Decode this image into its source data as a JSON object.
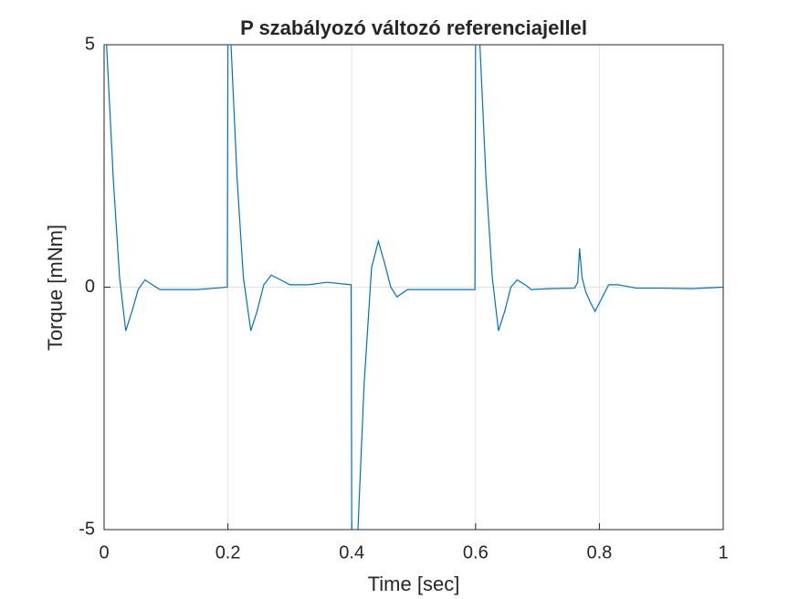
{
  "chart_data": {
    "type": "line",
    "title": "P szabályozó változó referenciajellel",
    "xlabel": "Time [sec]",
    "ylabel": "Torque [mNm]",
    "xlim": [
      0,
      1
    ],
    "ylim": [
      -5,
      5
    ],
    "xticks": [
      0,
      0.2,
      0.4,
      0.6,
      0.8,
      1
    ],
    "yticks": [
      -5,
      0,
      5
    ],
    "grid": true,
    "x": [
      0,
      0.004,
      0.015,
      0.025,
      0.035,
      0.045,
      0.055,
      0.066,
      0.078,
      0.09,
      0.12,
      0.15,
      0.18,
      0.199,
      0.2,
      0.205,
      0.215,
      0.225,
      0.237,
      0.247,
      0.258,
      0.27,
      0.285,
      0.3,
      0.33,
      0.36,
      0.399,
      0.4,
      0.41,
      0.42,
      0.432,
      0.443,
      0.453,
      0.463,
      0.473,
      0.49,
      0.52,
      0.56,
      0.599,
      0.6,
      0.607,
      0.617,
      0.627,
      0.637,
      0.647,
      0.657,
      0.667,
      0.68,
      0.69,
      0.72,
      0.76,
      0.765,
      0.768,
      0.772,
      0.778,
      0.785,
      0.793,
      0.803,
      0.815,
      0.83,
      0.86,
      0.9,
      0.95,
      1.0
    ],
    "series": [
      {
        "color": "#0072bd",
        "values": [
          5,
          5,
          2.2,
          0.2,
          -0.9,
          -0.5,
          -0.05,
          0.15,
          0.05,
          -0.05,
          -0.05,
          -0.05,
          -0.02,
          0,
          5,
          5,
          2.2,
          0.2,
          -0.9,
          -0.5,
          0.05,
          0.25,
          0.15,
          0.05,
          0.05,
          0.1,
          0.05,
          -5,
          -5,
          -2,
          0.4,
          0.95,
          0.5,
          0,
          -0.2,
          -0.05,
          -0.05,
          -0.05,
          -0.05,
          5,
          5,
          2.2,
          0.2,
          -0.9,
          -0.5,
          0,
          0.15,
          0.05,
          -0.05,
          -0.03,
          -0.02,
          0.1,
          0.8,
          0.2,
          -0.1,
          -0.3,
          -0.5,
          -0.25,
          0.05,
          0.05,
          -0.02,
          -0.02,
          -0.03,
          0
        ]
      }
    ]
  }
}
